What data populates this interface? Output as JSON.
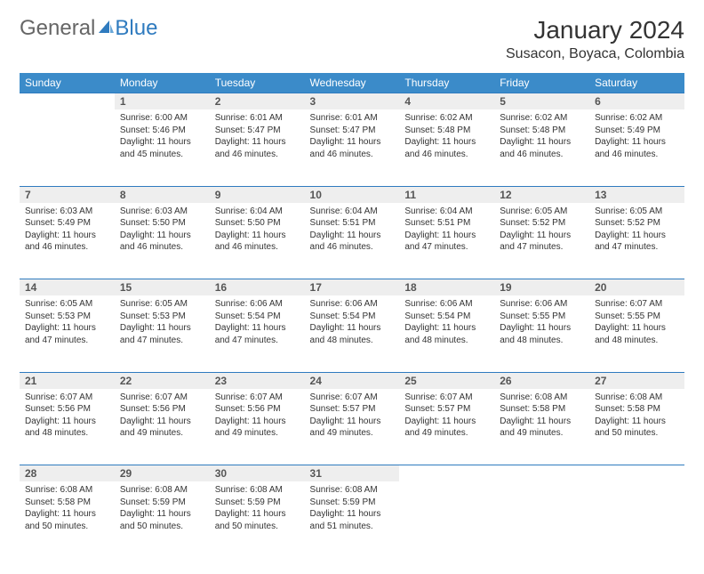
{
  "logo": {
    "part1": "General",
    "part2": "Blue"
  },
  "title": "January 2024",
  "location": "Susacon, Boyaca, Colombia",
  "colors": {
    "header_bg": "#3b8bc9",
    "header_text": "#ffffff",
    "daynum_bg": "#eeeeee",
    "border": "#2f7bbf",
    "text": "#333333",
    "logo_gray": "#666666",
    "logo_blue": "#2f7bbf",
    "background": "#ffffff"
  },
  "weekdays": [
    "Sunday",
    "Monday",
    "Tuesday",
    "Wednesday",
    "Thursday",
    "Friday",
    "Saturday"
  ],
  "weeks": [
    {
      "nums": [
        "",
        "1",
        "2",
        "3",
        "4",
        "5",
        "6"
      ],
      "cells": [
        null,
        {
          "sr": "Sunrise: 6:00 AM",
          "ss": "Sunset: 5:46 PM",
          "d1": "Daylight: 11 hours",
          "d2": "and 45 minutes."
        },
        {
          "sr": "Sunrise: 6:01 AM",
          "ss": "Sunset: 5:47 PM",
          "d1": "Daylight: 11 hours",
          "d2": "and 46 minutes."
        },
        {
          "sr": "Sunrise: 6:01 AM",
          "ss": "Sunset: 5:47 PM",
          "d1": "Daylight: 11 hours",
          "d2": "and 46 minutes."
        },
        {
          "sr": "Sunrise: 6:02 AM",
          "ss": "Sunset: 5:48 PM",
          "d1": "Daylight: 11 hours",
          "d2": "and 46 minutes."
        },
        {
          "sr": "Sunrise: 6:02 AM",
          "ss": "Sunset: 5:48 PM",
          "d1": "Daylight: 11 hours",
          "d2": "and 46 minutes."
        },
        {
          "sr": "Sunrise: 6:02 AM",
          "ss": "Sunset: 5:49 PM",
          "d1": "Daylight: 11 hours",
          "d2": "and 46 minutes."
        }
      ]
    },
    {
      "nums": [
        "7",
        "8",
        "9",
        "10",
        "11",
        "12",
        "13"
      ],
      "cells": [
        {
          "sr": "Sunrise: 6:03 AM",
          "ss": "Sunset: 5:49 PM",
          "d1": "Daylight: 11 hours",
          "d2": "and 46 minutes."
        },
        {
          "sr": "Sunrise: 6:03 AM",
          "ss": "Sunset: 5:50 PM",
          "d1": "Daylight: 11 hours",
          "d2": "and 46 minutes."
        },
        {
          "sr": "Sunrise: 6:04 AM",
          "ss": "Sunset: 5:50 PM",
          "d1": "Daylight: 11 hours",
          "d2": "and 46 minutes."
        },
        {
          "sr": "Sunrise: 6:04 AM",
          "ss": "Sunset: 5:51 PM",
          "d1": "Daylight: 11 hours",
          "d2": "and 46 minutes."
        },
        {
          "sr": "Sunrise: 6:04 AM",
          "ss": "Sunset: 5:51 PM",
          "d1": "Daylight: 11 hours",
          "d2": "and 47 minutes."
        },
        {
          "sr": "Sunrise: 6:05 AM",
          "ss": "Sunset: 5:52 PM",
          "d1": "Daylight: 11 hours",
          "d2": "and 47 minutes."
        },
        {
          "sr": "Sunrise: 6:05 AM",
          "ss": "Sunset: 5:52 PM",
          "d1": "Daylight: 11 hours",
          "d2": "and 47 minutes."
        }
      ]
    },
    {
      "nums": [
        "14",
        "15",
        "16",
        "17",
        "18",
        "19",
        "20"
      ],
      "cells": [
        {
          "sr": "Sunrise: 6:05 AM",
          "ss": "Sunset: 5:53 PM",
          "d1": "Daylight: 11 hours",
          "d2": "and 47 minutes."
        },
        {
          "sr": "Sunrise: 6:05 AM",
          "ss": "Sunset: 5:53 PM",
          "d1": "Daylight: 11 hours",
          "d2": "and 47 minutes."
        },
        {
          "sr": "Sunrise: 6:06 AM",
          "ss": "Sunset: 5:54 PM",
          "d1": "Daylight: 11 hours",
          "d2": "and 47 minutes."
        },
        {
          "sr": "Sunrise: 6:06 AM",
          "ss": "Sunset: 5:54 PM",
          "d1": "Daylight: 11 hours",
          "d2": "and 48 minutes."
        },
        {
          "sr": "Sunrise: 6:06 AM",
          "ss": "Sunset: 5:54 PM",
          "d1": "Daylight: 11 hours",
          "d2": "and 48 minutes."
        },
        {
          "sr": "Sunrise: 6:06 AM",
          "ss": "Sunset: 5:55 PM",
          "d1": "Daylight: 11 hours",
          "d2": "and 48 minutes."
        },
        {
          "sr": "Sunrise: 6:07 AM",
          "ss": "Sunset: 5:55 PM",
          "d1": "Daylight: 11 hours",
          "d2": "and 48 minutes."
        }
      ]
    },
    {
      "nums": [
        "21",
        "22",
        "23",
        "24",
        "25",
        "26",
        "27"
      ],
      "cells": [
        {
          "sr": "Sunrise: 6:07 AM",
          "ss": "Sunset: 5:56 PM",
          "d1": "Daylight: 11 hours",
          "d2": "and 48 minutes."
        },
        {
          "sr": "Sunrise: 6:07 AM",
          "ss": "Sunset: 5:56 PM",
          "d1": "Daylight: 11 hours",
          "d2": "and 49 minutes."
        },
        {
          "sr": "Sunrise: 6:07 AM",
          "ss": "Sunset: 5:56 PM",
          "d1": "Daylight: 11 hours",
          "d2": "and 49 minutes."
        },
        {
          "sr": "Sunrise: 6:07 AM",
          "ss": "Sunset: 5:57 PM",
          "d1": "Daylight: 11 hours",
          "d2": "and 49 minutes."
        },
        {
          "sr": "Sunrise: 6:07 AM",
          "ss": "Sunset: 5:57 PM",
          "d1": "Daylight: 11 hours",
          "d2": "and 49 minutes."
        },
        {
          "sr": "Sunrise: 6:08 AM",
          "ss": "Sunset: 5:58 PM",
          "d1": "Daylight: 11 hours",
          "d2": "and 49 minutes."
        },
        {
          "sr": "Sunrise: 6:08 AM",
          "ss": "Sunset: 5:58 PM",
          "d1": "Daylight: 11 hours",
          "d2": "and 50 minutes."
        }
      ]
    },
    {
      "nums": [
        "28",
        "29",
        "30",
        "31",
        "",
        "",
        ""
      ],
      "cells": [
        {
          "sr": "Sunrise: 6:08 AM",
          "ss": "Sunset: 5:58 PM",
          "d1": "Daylight: 11 hours",
          "d2": "and 50 minutes."
        },
        {
          "sr": "Sunrise: 6:08 AM",
          "ss": "Sunset: 5:59 PM",
          "d1": "Daylight: 11 hours",
          "d2": "and 50 minutes."
        },
        {
          "sr": "Sunrise: 6:08 AM",
          "ss": "Sunset: 5:59 PM",
          "d1": "Daylight: 11 hours",
          "d2": "and 50 minutes."
        },
        {
          "sr": "Sunrise: 6:08 AM",
          "ss": "Sunset: 5:59 PM",
          "d1": "Daylight: 11 hours",
          "d2": "and 51 minutes."
        },
        null,
        null,
        null
      ]
    }
  ]
}
